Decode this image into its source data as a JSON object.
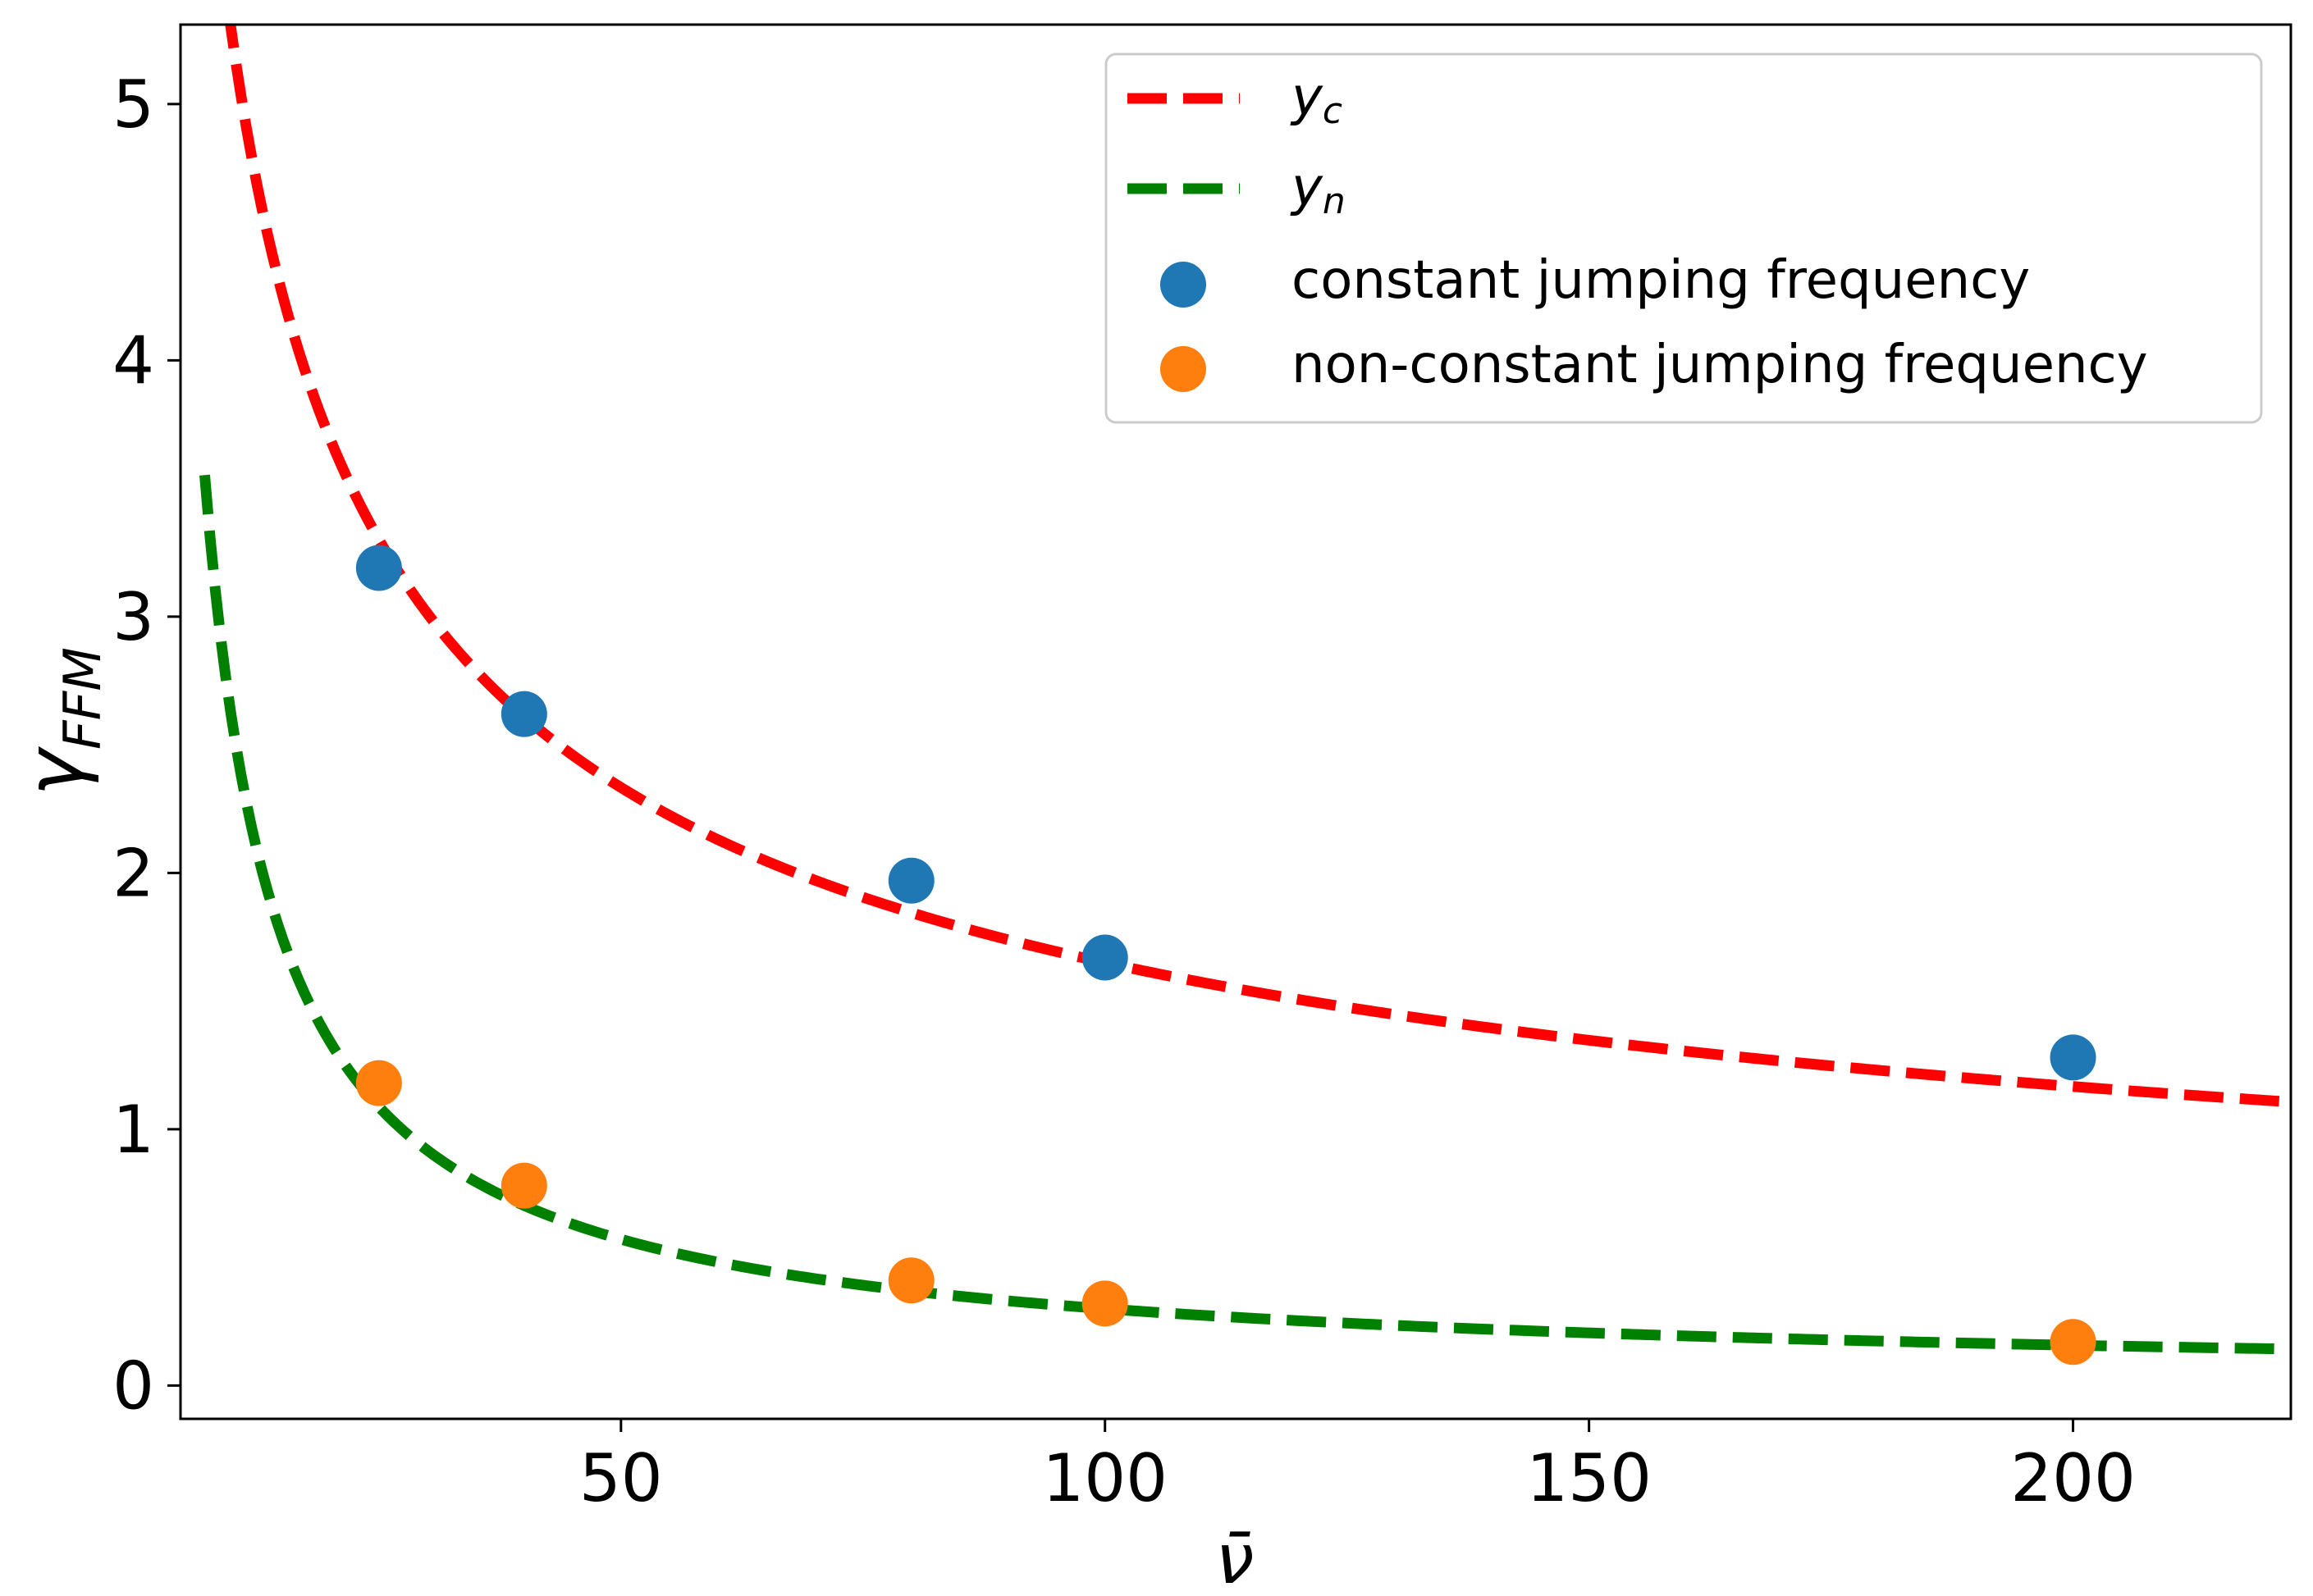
{
  "chart_data": {
    "type": "scatter",
    "title": "",
    "xlabel": "ν̄",
    "ylabel": "γFFM",
    "xlim": [
      4.5,
      222.5
    ],
    "ylim": [
      -0.13,
      5.31
    ],
    "xticks": [
      50,
      100,
      150,
      200
    ],
    "yticks": [
      0,
      1,
      2,
      3,
      4,
      5
    ],
    "grid": false,
    "legend_placement": "top-right",
    "curves": [
      {
        "name": "y_c",
        "label_main": "y",
        "label_sub": "c",
        "color": "#ff0000",
        "style": "dashed",
        "formula": "16.5 * x^-0.5",
        "x_start": 7,
        "x_end": 222.5
      },
      {
        "name": "y_n",
        "label_main": "y",
        "label_sub": "n",
        "color": "#008000",
        "style": "dashed",
        "formula": "21.7 * x^-0.93",
        "x_start": 7,
        "x_end": 222.5
      }
    ],
    "series": [
      {
        "name": "constant jumping frequency",
        "color": "#1f77b4",
        "x": [
          25,
          40,
          80,
          100,
          200
        ],
        "y": [
          3.19,
          2.62,
          1.97,
          1.67,
          1.28
        ]
      },
      {
        "name": "non-constant jumping frequency",
        "color": "#ff7f0e",
        "x": [
          25,
          40,
          80,
          100,
          200
        ],
        "y": [
          1.18,
          0.78,
          0.41,
          0.32,
          0.17
        ]
      }
    ]
  }
}
